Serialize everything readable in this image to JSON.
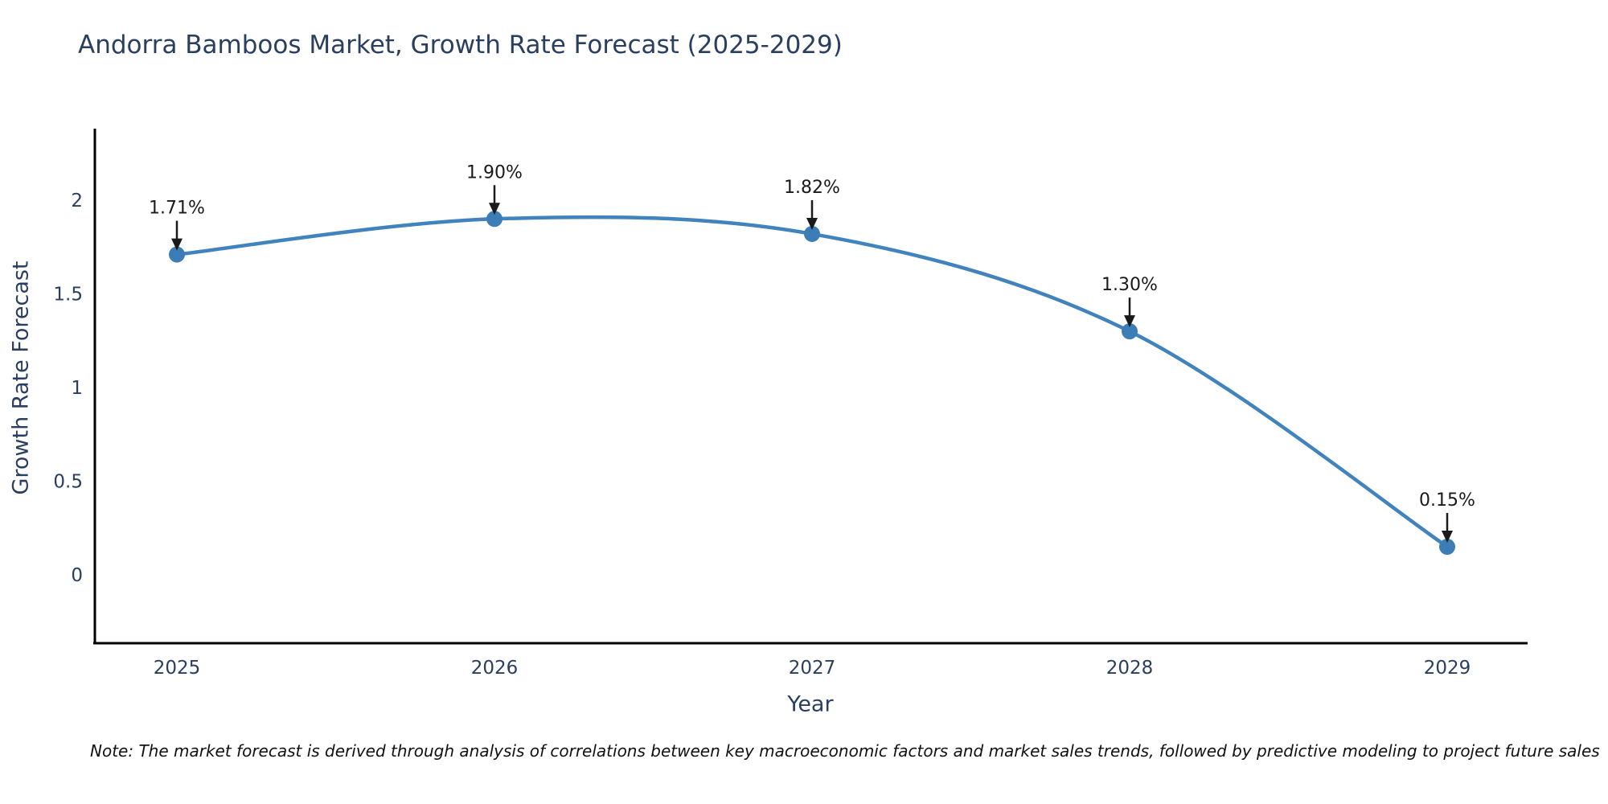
{
  "chart": {
    "note": "Note: The market forecast is derived through analysis of correlations between key macroeconomic factors and market sales trends, followed by predictive modeling to project future sales"
  },
  "chart_data": {
    "type": "line",
    "title": "Andorra Bamboos Market, Growth Rate Forecast (2025-2029)",
    "xlabel": "Year",
    "ylabel": "Growth Rate Forecast",
    "x": [
      2025,
      2026,
      2027,
      2028,
      2029
    ],
    "categories": [
      "2025",
      "2026",
      "2027",
      "2028",
      "2029"
    ],
    "values": [
      1.71,
      1.9,
      1.82,
      1.3,
      0.15
    ],
    "point_labels": [
      "1.71%",
      "1.90%",
      "1.82%",
      "1.30%",
      "0.15%"
    ],
    "yticks": [
      0,
      0.5,
      1,
      1.5,
      2
    ],
    "ytick_labels": [
      "0",
      "0.5",
      "1",
      "1.5",
      "2"
    ],
    "ylim": [
      -0.37,
      2.38
    ],
    "line_shape": "spline",
    "grid": false,
    "legend_position": "none",
    "colors": {
      "line": "#4183bd",
      "marker": "#3c7db8",
      "axis": "#000000",
      "annotation": "#1a1a1a",
      "title_text": "#2a3f5f",
      "background": "#ffffff"
    }
  }
}
